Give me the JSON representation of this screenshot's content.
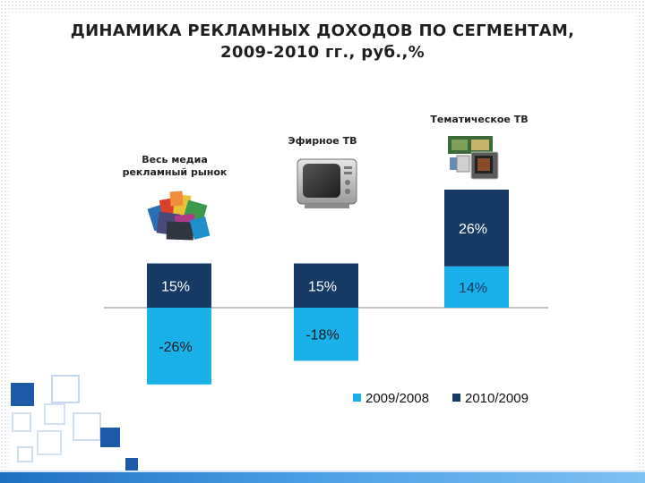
{
  "slide": {
    "title_line1": "ДИНАМИКА РЕКЛАМНЫХ ДОХОДОВ ПО СЕГМЕНТАМ,",
    "title_line2": "2009-2010 гг., руб.,%"
  },
  "icons": {
    "media_market": "magazines-stack-icon",
    "broadcast_tv": "tv-set-icon",
    "thematic_tv": "thematic-tv-screens-icon"
  },
  "colors": {
    "series_2009_2008": "#1ab1ea",
    "series_2010_2009": "#163a63",
    "decor_blue": "#1e5aa8",
    "bottom_band": "#3d8fd6"
  },
  "chart_data": {
    "type": "bar",
    "stacked": true,
    "categories": [
      "Весь медиа рекламный рынок",
      "Эфирное ТВ",
      "Тематическое ТВ"
    ],
    "series": [
      {
        "name": "2009/2008",
        "values": [
          -26,
          -18,
          14
        ],
        "labels": [
          "-26%",
          "-18%",
          "14%"
        ]
      },
      {
        "name": "2010/2009",
        "values": [
          15,
          15,
          26
        ],
        "labels": [
          "15%",
          "15%",
          "26%"
        ]
      }
    ],
    "legend_position": "bottom-right",
    "grid": false
  }
}
